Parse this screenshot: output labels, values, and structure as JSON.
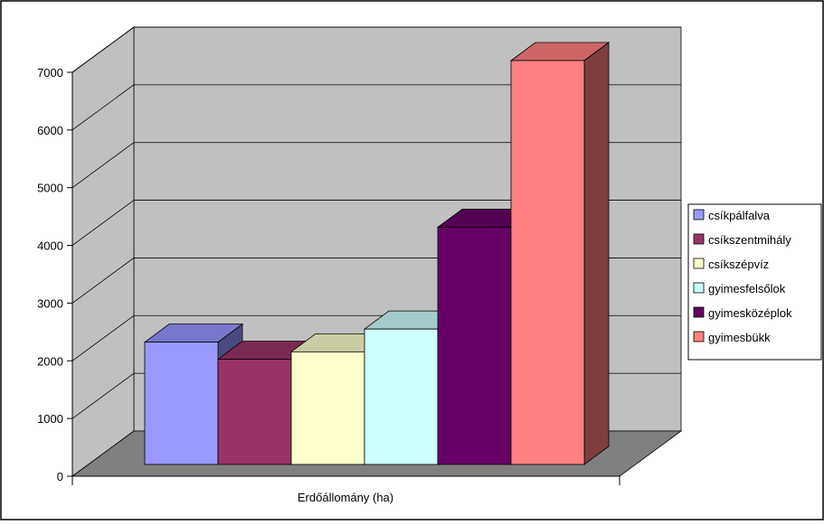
{
  "chart_data": {
    "type": "bar",
    "style": "3d-column",
    "xlabel": "Erdőállomány (ha)",
    "ylim": [
      0,
      7000
    ],
    "yticks": [
      0,
      1000,
      2000,
      3000,
      4000,
      5000,
      6000,
      7000
    ],
    "grid": true,
    "legend_position": "right",
    "series": [
      {
        "name": "csíkpálfalva",
        "value": 2150,
        "color": "#9999ff",
        "top_color": "#7777cc",
        "side_color": "#4a4a80"
      },
      {
        "name": "csíkszentmihály",
        "value": 1850,
        "color": "#993366",
        "top_color": "#7a2952",
        "side_color": "#4d1a33"
      },
      {
        "name": "csíkszépvíz",
        "value": 1980,
        "color": "#ffffcc",
        "top_color": "#cccca3",
        "side_color": "#808066"
      },
      {
        "name": "gyimesfelsőlok",
        "value": 2380,
        "color": "#ccffff",
        "top_color": "#a3cccc",
        "side_color": "#668080"
      },
      {
        "name": "gyimesközéplok",
        "value": 4170,
        "color": "#660066",
        "top_color": "#520052",
        "side_color": "#330033"
      },
      {
        "name": "gyimesbükk",
        "value": 7100,
        "color": "#ff8080",
        "top_color": "#cc6666",
        "side_color": "#803f3f"
      }
    ]
  },
  "colors": {
    "wall": "#c0c0c0",
    "floor": "#808080",
    "gridline": "#000000",
    "frame": "#000000"
  }
}
